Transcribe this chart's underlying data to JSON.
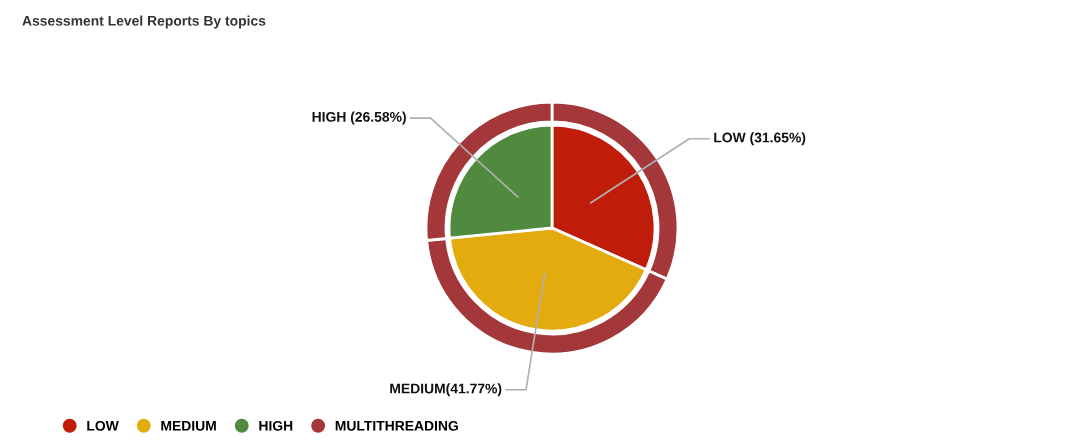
{
  "chart_data": {
    "type": "pie",
    "title": "Assessment Level Reports By topics",
    "categories": [
      "LOW",
      "MEDIUM",
      "HIGH"
    ],
    "legend": "bottom left",
    "series": [
      {
        "type": "donut",
        "name": "MULTITHREADING",
        "color": "#a3373a",
        "values": [
          31.65,
          41.77,
          26.58
        ]
      },
      {
        "colors": [
          "#c01c0a",
          "#e3ab0d",
          "#4f8a3f"
        ],
        "values": [
          31.65,
          41.77,
          26.58
        ],
        "value_labels": [
          "LOW (31.65%)",
          "MEDIUM(41.77%)",
          "HIGH (26.58%)"
        ]
      }
    ]
  }
}
